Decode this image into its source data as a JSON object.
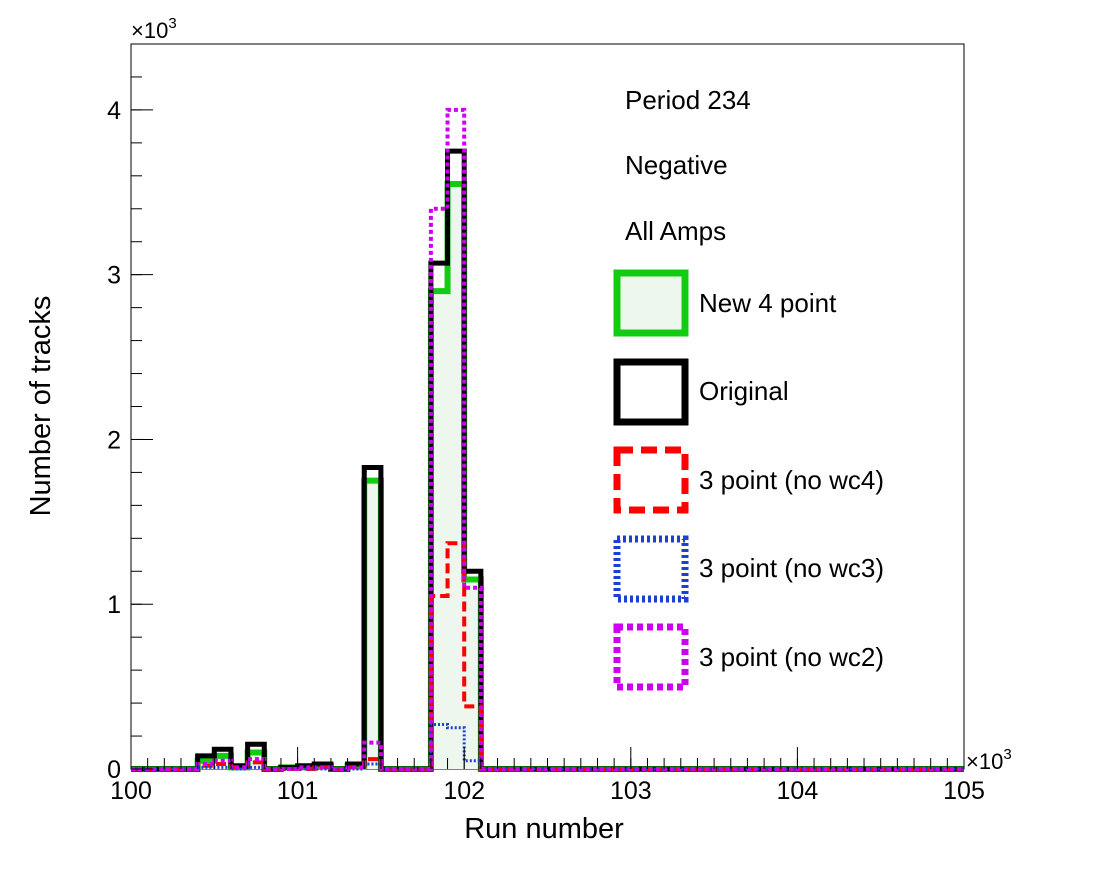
{
  "chart_data": {
    "type": "step",
    "xlabel": "Run number",
    "ylabel": "Number of tracks",
    "x_multiplier": "×10",
    "y_multiplier": "×10",
    "multiplier_exponent": "3",
    "xlim": [
      100,
      105
    ],
    "ylim": [
      0,
      4.4
    ],
    "x_ticks": [
      100,
      101,
      102,
      103,
      104,
      105
    ],
    "y_ticks": [
      0,
      1,
      2,
      3,
      4
    ],
    "x_tick_labels": [
      "100",
      "101",
      "102",
      "103",
      "104",
      "105"
    ],
    "y_tick_labels": [
      "0",
      "1",
      "2",
      "3",
      "4"
    ],
    "bin_edges": [
      100.3,
      100.4,
      100.5,
      100.6,
      100.7,
      100.8,
      100.9,
      101.0,
      101.1,
      101.2,
      101.3,
      101.4,
      101.5,
      101.6,
      101.7,
      101.8,
      101.9,
      102.0,
      102.1
    ],
    "annotations": [
      "Period 234",
      "Negative",
      "All Amps"
    ],
    "legend_position": "right",
    "series": [
      {
        "name": "New 4 point",
        "style": "green-filled",
        "color": "#11cc11",
        "fill": "#eef7ee",
        "values": [
          0,
          0.05,
          0.08,
          0.01,
          0.1,
          0,
          0.01,
          0.01,
          0.02,
          0,
          0.02,
          1.75,
          0,
          0,
          0,
          2.9,
          3.55,
          1.15
        ]
      },
      {
        "name": "Original",
        "style": "black-solid",
        "color": "#000000",
        "values": [
          0,
          0.08,
          0.12,
          0.02,
          0.15,
          0,
          0.01,
          0.02,
          0.03,
          0,
          0.03,
          1.83,
          0,
          0,
          0,
          3.07,
          3.75,
          1.2
        ]
      },
      {
        "name": "3 point (no wc4)",
        "style": "red-dashed",
        "color": "#ff0000",
        "values": [
          0,
          0.02,
          0.03,
          0.01,
          0.04,
          0,
          0,
          0,
          0.01,
          0,
          0.01,
          0.06,
          0,
          0,
          0,
          1.05,
          1.37,
          0.38
        ]
      },
      {
        "name": "3 point (no wc3)",
        "style": "blue-dotted",
        "color": "#1c3fd6",
        "values": [
          0,
          0.01,
          0.01,
          0,
          0.01,
          0,
          0,
          0,
          0,
          0,
          0,
          0.03,
          0,
          0,
          0,
          0.27,
          0.25,
          0.05
        ]
      },
      {
        "name": "3 point (no wc2)",
        "style": "magenta-dotted",
        "color": "#cc00ee",
        "values": [
          0,
          0.03,
          0.05,
          0.01,
          0.06,
          0,
          0,
          0.01,
          0.01,
          0,
          0.01,
          0.16,
          0,
          0,
          0,
          3.4,
          4.0,
          1.1
        ]
      }
    ]
  }
}
